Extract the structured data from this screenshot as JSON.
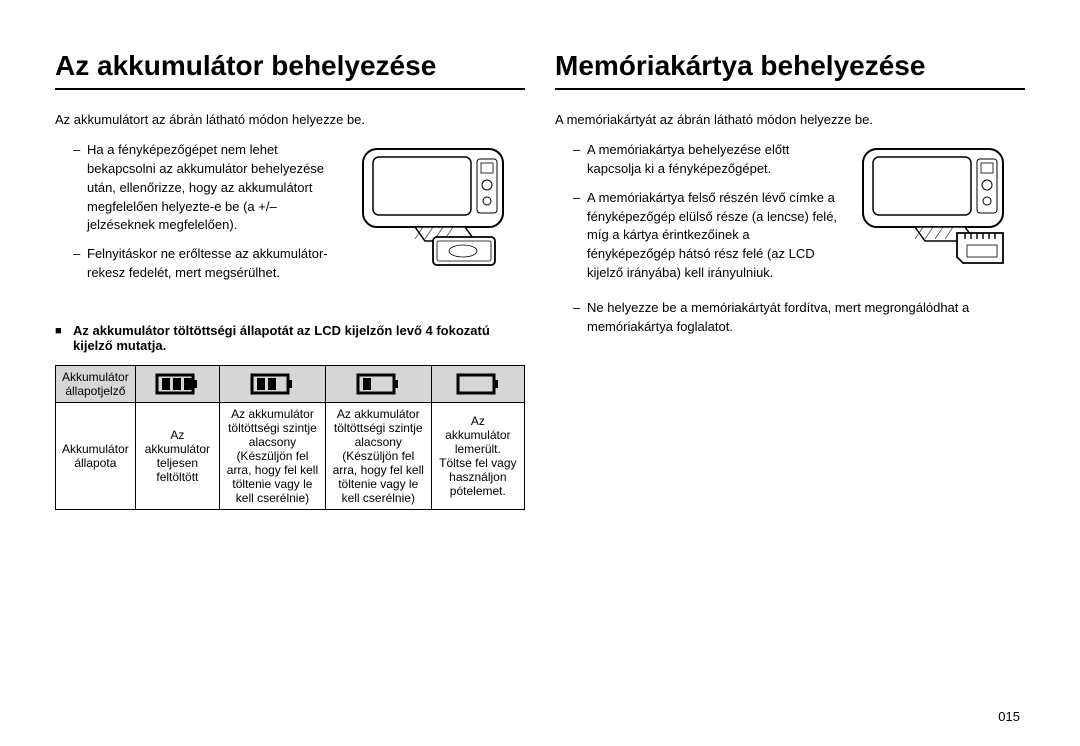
{
  "left": {
    "title": "Az akkumulátor behelyezése",
    "intro": "Az akkumulátort az ábrán látható módon helyezze be.",
    "bullets": [
      "Ha a fényképezőgépet nem lehet bekapcsolni az akkumulátor behelyezése után, ellenőrizze, hogy az akkumulátort megfelelően helyezte-e be (a +/– jelzéseknek megfelelően).",
      "Felnyitáskor ne erőltesse az akkumulátor-rekesz fedelét, mert megsérülhet."
    ],
    "subhead": "Az akkumulátor töltöttségi állapotát az LCD kijelzőn levő 4 fokozatú kijelző mutatja.",
    "table": {
      "row1_label": "Akkumulátor állapotjelző",
      "row2_label": "Akkumulátor állapota",
      "cells": [
        "Az akkumulátor teljesen feltöltött",
        "Az akkumulátor töltöttségi szintje alacsony (Készüljön fel arra, hogy fel kell töltenie vagy le kell cserélnie)",
        "Az akkumulátor töltöttségi szintje alacsony (Készüljön fel arra, hogy fel kell töltenie vagy le kell cserélnie)",
        "Az akkumulátor lemerült. Töltse fel vagy használjon pótelemet."
      ],
      "battery_levels": [
        3,
        2,
        1,
        0
      ]
    }
  },
  "right": {
    "title": "Memóriakártya behelyezése",
    "intro": "A memóriakártyát az ábrán látható módon helyezze be.",
    "bullets": [
      "A memóriakártya behelyezése előtt kapcsolja ki a fényképezőgépet.",
      "A memóriakártya felső részén lévő címke a fényképezőgép elülső része (a lencse) felé, míg a kártya érintkezőinek a fényképezőgép hátsó rész felé (az LCD kijelző irányába) kell irányulniuk."
    ],
    "bullets_full": [
      "Ne helyezze be a memóriakártyát fordítva, mert megrongálódhat a memóriakártya foglalatot."
    ]
  },
  "page_number": "015",
  "colors": {
    "bg": "#ffffff",
    "text": "#000000",
    "table_header": "#d6d6d6",
    "border": "#000000"
  }
}
